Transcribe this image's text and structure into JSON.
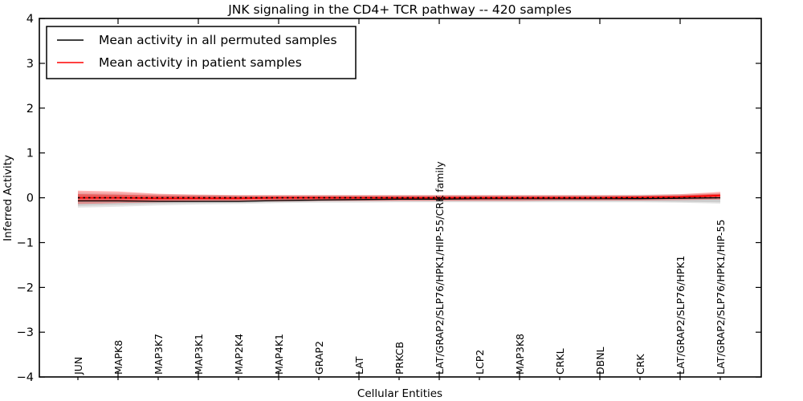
{
  "figure": {
    "title": "JNK signaling in the CD4+ TCR pathway -- 420 samples",
    "xlabel": "Cellular Entities",
    "ylabel": "Inferred Activity",
    "background_color": "#ffffff",
    "axis_color": "#000000"
  },
  "legend": {
    "position": "upper left",
    "entries": [
      {
        "label": "Mean activity in all permuted samples",
        "color": "#000000"
      },
      {
        "label": "Mean activity in patient samples",
        "color": "#ff0000"
      }
    ]
  },
  "chart_data": {
    "type": "line",
    "title": "JNK signaling in the CD4+ TCR pathway -- 420 samples",
    "xlabel": "Cellular Entities",
    "ylabel": "Inferred Activity",
    "ylim": [
      -4,
      4
    ],
    "yticks": [
      4,
      3,
      2,
      1,
      0,
      -1,
      -2,
      -3,
      -4
    ],
    "ytick_labels": [
      "4",
      "3",
      "2",
      "1",
      "0",
      "−1",
      "−2",
      "−3",
      "−4"
    ],
    "grid": false,
    "legend_position": "upper left",
    "categories": [
      "JUN",
      "MAPK8",
      "MAP3K7",
      "MAP3K1",
      "MAP2K4",
      "MAP4K1",
      "GRAP2",
      "LAT",
      "PRKCB",
      "LAT/GRAP2/SLP76/HPK1/HIP-55/CRK family",
      "LCP2",
      "MAP3K8",
      "CRKL",
      "DBNL",
      "CRK",
      "LAT/GRAP2/SLP76/HPK1",
      "LAT/GRAP2/SLP76/HPK1/HIP-55"
    ],
    "series": [
      {
        "name": "Mean activity in all permuted samples",
        "color": "#000000",
        "style": "solid",
        "width": 1.3,
        "values": [
          -0.07,
          -0.07,
          -0.08,
          -0.08,
          -0.08,
          -0.06,
          -0.05,
          -0.04,
          -0.03,
          -0.03,
          -0.02,
          -0.02,
          -0.02,
          -0.02,
          -0.02,
          -0.01,
          0.0
        ]
      },
      {
        "name": "Mean activity in patient samples",
        "color": "#ff0000",
        "style": "solid",
        "width": 1.8,
        "values": [
          0.0,
          0.0,
          -0.01,
          -0.01,
          -0.01,
          0.0,
          0.0,
          0.0,
          0.0,
          0.0,
          0.0,
          0.0,
          0.0,
          0.0,
          0.01,
          0.02,
          0.05
        ]
      },
      {
        "name": "zero-reference",
        "color": "#000000",
        "style": "dotted",
        "width": 1.6,
        "values": [
          0,
          0,
          0,
          0,
          0,
          0,
          0,
          0,
          0,
          0,
          0,
          0,
          0,
          0,
          0,
          0,
          0
        ]
      }
    ],
    "bands": [
      {
        "name": "permuted-spread-outer",
        "color": "rgba(0,0,0,0.10)",
        "upper": [
          0.12,
          0.1,
          0.08,
          0.07,
          0.06,
          0.06,
          0.06,
          0.06,
          0.06,
          0.06,
          0.06,
          0.06,
          0.06,
          0.06,
          0.07,
          0.08,
          0.1
        ],
        "lower": [
          -0.22,
          -0.2,
          -0.17,
          -0.15,
          -0.14,
          -0.12,
          -0.11,
          -0.11,
          -0.1,
          -0.1,
          -0.1,
          -0.1,
          -0.1,
          -0.1,
          -0.1,
          -0.11,
          -0.13
        ]
      },
      {
        "name": "permuted-spread-inner",
        "color": "rgba(0,0,0,0.10)",
        "upper": [
          0.08,
          0.07,
          0.05,
          0.05,
          0.04,
          0.04,
          0.04,
          0.04,
          0.04,
          0.04,
          0.04,
          0.04,
          0.04,
          0.04,
          0.05,
          0.06,
          0.08
        ],
        "lower": [
          -0.18,
          -0.16,
          -0.13,
          -0.12,
          -0.11,
          -0.1,
          -0.09,
          -0.08,
          -0.08,
          -0.08,
          -0.08,
          -0.08,
          -0.08,
          -0.08,
          -0.08,
          -0.09,
          -0.1
        ]
      },
      {
        "name": "patient-spread-outer",
        "color": "rgba(255,0,0,0.30)",
        "upper": [
          0.16,
          0.14,
          0.09,
          0.07,
          0.06,
          0.06,
          0.06,
          0.06,
          0.06,
          0.06,
          0.06,
          0.06,
          0.06,
          0.06,
          0.06,
          0.08,
          0.13
        ],
        "lower": [
          -0.14,
          -0.12,
          -0.1,
          -0.09,
          -0.08,
          -0.08,
          -0.07,
          -0.07,
          -0.07,
          -0.07,
          -0.07,
          -0.07,
          -0.06,
          -0.06,
          -0.06,
          -0.05,
          -0.04
        ]
      },
      {
        "name": "patient-spread-inner",
        "color": "rgba(255,0,0,0.35)",
        "upper": [
          0.08,
          0.07,
          0.05,
          0.04,
          0.03,
          0.03,
          0.03,
          0.03,
          0.03,
          0.03,
          0.03,
          0.03,
          0.03,
          0.03,
          0.03,
          0.05,
          0.09
        ],
        "lower": [
          -0.08,
          -0.07,
          -0.06,
          -0.05,
          -0.05,
          -0.04,
          -0.04,
          -0.04,
          -0.04,
          -0.04,
          -0.04,
          -0.03,
          -0.03,
          -0.03,
          -0.03,
          -0.02,
          0.0
        ]
      }
    ]
  }
}
